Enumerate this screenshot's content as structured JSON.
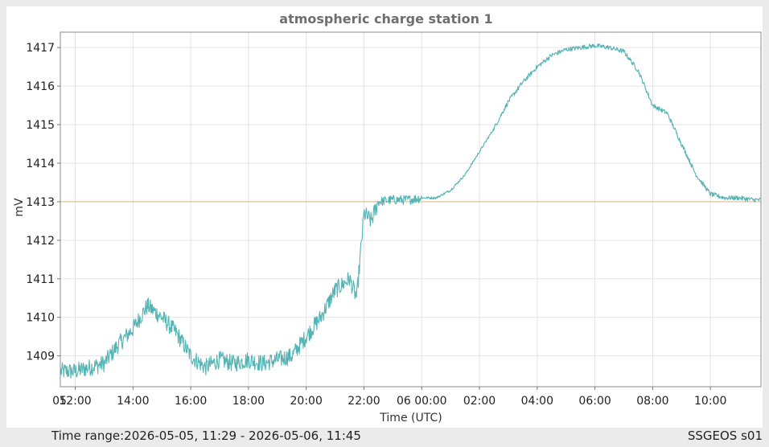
{
  "chart_data": {
    "type": "line",
    "title": "atmospheric charge station 1",
    "xlabel": "Time (UTC)",
    "ylabel": "mV",
    "x_start_label": "05",
    "x_ticks": [
      "12:00",
      "14:00",
      "16:00",
      "18:00",
      "20:00",
      "22:00",
      "06 00:00",
      "02:00",
      "04:00",
      "06:00",
      "08:00",
      "10:00"
    ],
    "y_ticks": [
      1409,
      1410,
      1411,
      1412,
      1413,
      1414,
      1415,
      1416,
      1417
    ],
    "xlim": [
      "2026-05-05 11:29",
      "2026-05-06 11:45"
    ],
    "ylim": [
      1408.2,
      1417.4
    ],
    "reference_line": {
      "y": 1413,
      "color": "#d8b98a"
    },
    "grid": true,
    "series": [
      {
        "color": "#54b4b4",
        "x": [
          "2026-05-05 11:30",
          "2026-05-05 12:00",
          "2026-05-05 12:30",
          "2026-05-05 13:00",
          "2026-05-05 13:30",
          "2026-05-05 14:00",
          "2026-05-05 14:30",
          "2026-05-05 15:00",
          "2026-05-05 15:30",
          "2026-05-05 16:00",
          "2026-05-05 16:30",
          "2026-05-05 17:00",
          "2026-05-05 17:30",
          "2026-05-05 18:00",
          "2026-05-05 18:30",
          "2026-05-05 19:00",
          "2026-05-05 19:30",
          "2026-05-05 20:00",
          "2026-05-05 20:30",
          "2026-05-05 21:00",
          "2026-05-05 21:30",
          "2026-05-05 21:45",
          "2026-05-05 22:00",
          "2026-05-05 22:15",
          "2026-05-05 22:30",
          "2026-05-05 23:00",
          "2026-05-05 23:30",
          "2026-05-06 00:00",
          "2026-05-06 00:30",
          "2026-05-06 01:00",
          "2026-05-06 01:30",
          "2026-05-06 02:00",
          "2026-05-06 02:30",
          "2026-05-06 03:00",
          "2026-05-06 03:30",
          "2026-05-06 04:00",
          "2026-05-06 04:30",
          "2026-05-06 05:00",
          "2026-05-06 05:30",
          "2026-05-06 06:00",
          "2026-05-06 06:30",
          "2026-05-06 07:00",
          "2026-05-06 07:30",
          "2026-05-06 08:00",
          "2026-05-06 08:30",
          "2026-05-06 09:00",
          "2026-05-06 09:30",
          "2026-05-06 10:00",
          "2026-05-06 10:30",
          "2026-05-06 11:00",
          "2026-05-06 11:30",
          "2026-05-06 11:45"
        ],
        "y": [
          1408.6,
          1408.6,
          1408.7,
          1408.8,
          1409.3,
          1409.7,
          1410.3,
          1410.0,
          1409.6,
          1409.0,
          1408.7,
          1408.9,
          1408.8,
          1408.9,
          1408.8,
          1408.9,
          1409.0,
          1409.5,
          1410.0,
          1410.7,
          1411.0,
          1410.5,
          1412.7,
          1412.5,
          1413.0,
          1413.05,
          1413.05,
          1413.1,
          1413.1,
          1413.3,
          1413.7,
          1414.3,
          1414.9,
          1415.6,
          1416.1,
          1416.5,
          1416.8,
          1416.95,
          1417.0,
          1417.05,
          1417.0,
          1416.9,
          1416.4,
          1415.5,
          1415.3,
          1414.5,
          1413.7,
          1413.2,
          1413.1,
          1413.1,
          1413.05,
          1413.05
        ]
      }
    ]
  },
  "footer": {
    "time_range": "Time range:2026-05-05, 11:29 - 2026-05-06, 11:45",
    "source": "SSGEOS s01"
  }
}
